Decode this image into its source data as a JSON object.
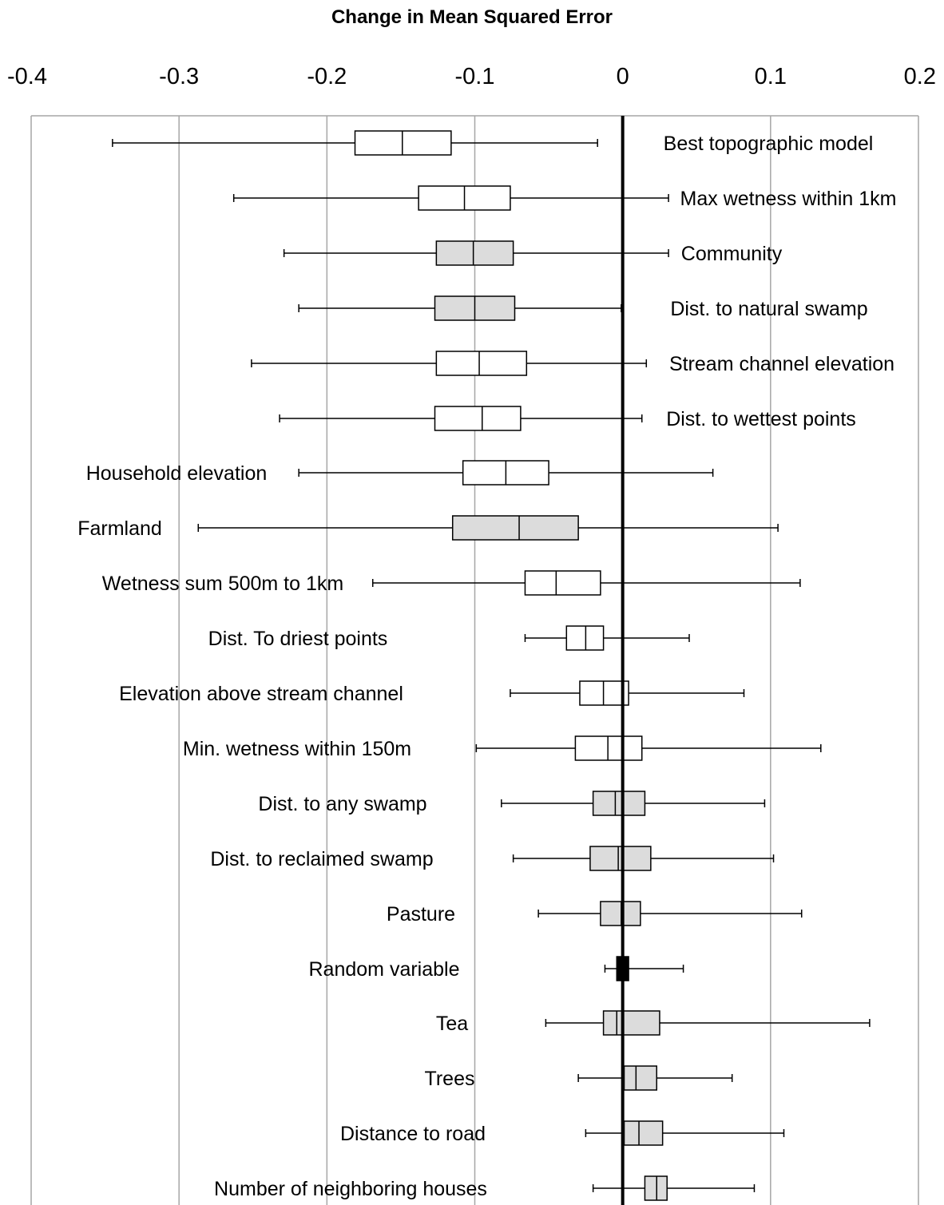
{
  "chart_data": {
    "type": "box",
    "title": "Change in Mean Squared Error",
    "xlabel": "",
    "ylabel": "",
    "xlim": [
      -0.4,
      0.2
    ],
    "xticks": [
      "-0.4",
      "-0.3",
      "-0.2",
      "-0.1",
      "0",
      "0.1",
      "0.2"
    ],
    "grid": true,
    "reference_line": 0,
    "fill_colors": {
      "white": "#ffffff",
      "gray": "#dcdcdc",
      "black": "#000000"
    },
    "series": [
      {
        "name": "Best topographic model",
        "min": -0.345,
        "q1": -0.181,
        "median": -0.149,
        "q3": -0.116,
        "max": -0.017,
        "fill": "white"
      },
      {
        "name": "Max wetness within 1km",
        "min": -0.263,
        "q1": -0.138,
        "median": -0.107,
        "q3": -0.076,
        "max": 0.031,
        "fill": "white"
      },
      {
        "name": "Community",
        "min": -0.229,
        "q1": -0.126,
        "median": -0.101,
        "q3": -0.074,
        "max": 0.031,
        "fill": "gray"
      },
      {
        "name": "Dist. to natural swamp",
        "min": -0.219,
        "q1": -0.127,
        "median": -0.1,
        "q3": -0.073,
        "max": -0.001,
        "fill": "gray"
      },
      {
        "name": "Stream channel elevation",
        "min": -0.251,
        "q1": -0.126,
        "median": -0.097,
        "q3": -0.065,
        "max": 0.016,
        "fill": "white"
      },
      {
        "name": "Dist. to wettest points",
        "min": -0.232,
        "q1": -0.127,
        "median": -0.095,
        "q3": -0.069,
        "max": 0.013,
        "fill": "white"
      },
      {
        "name": "Household elevation",
        "min": -0.219,
        "q1": -0.108,
        "median": -0.079,
        "q3": -0.05,
        "max": 0.061,
        "fill": "white"
      },
      {
        "name": "Farmland",
        "min": -0.287,
        "q1": -0.115,
        "median": -0.07,
        "q3": -0.03,
        "max": 0.105,
        "fill": "gray"
      },
      {
        "name": "Wetness sum 500m to 1km",
        "min": -0.169,
        "q1": -0.066,
        "median": -0.045,
        "q3": -0.015,
        "max": 0.12,
        "fill": "white"
      },
      {
        "name": "Dist. To driest points",
        "min": -0.066,
        "q1": -0.038,
        "median": -0.025,
        "q3": -0.013,
        "max": 0.045,
        "fill": "white"
      },
      {
        "name": "Elevation above stream channel",
        "min": -0.076,
        "q1": -0.029,
        "median": -0.013,
        "q3": 0.004,
        "max": 0.082,
        "fill": "white"
      },
      {
        "name": "Min. wetness within 150m",
        "min": -0.099,
        "q1": -0.032,
        "median": -0.01,
        "q3": 0.013,
        "max": 0.134,
        "fill": "white"
      },
      {
        "name": "Dist. to any swamp",
        "min": -0.082,
        "q1": -0.02,
        "median": -0.005,
        "q3": 0.015,
        "max": 0.096,
        "fill": "gray"
      },
      {
        "name": "Dist. to reclaimed swamp",
        "min": -0.074,
        "q1": -0.022,
        "median": -0.003,
        "q3": 0.019,
        "max": 0.102,
        "fill": "gray"
      },
      {
        "name": "Pasture",
        "min": -0.057,
        "q1": -0.015,
        "median": -0.001,
        "q3": 0.012,
        "max": 0.121,
        "fill": "gray"
      },
      {
        "name": "Random variable",
        "min": -0.012,
        "q1": -0.004,
        "median": 0.0,
        "q3": 0.004,
        "max": 0.041,
        "fill": "black"
      },
      {
        "name": "Tea",
        "min": -0.052,
        "q1": -0.013,
        "median": -0.004,
        "q3": 0.025,
        "max": 0.167,
        "fill": "gray"
      },
      {
        "name": "Trees",
        "min": -0.03,
        "q1": 0.001,
        "median": 0.009,
        "q3": 0.023,
        "max": 0.074,
        "fill": "gray"
      },
      {
        "name": "Distance to road",
        "min": -0.025,
        "q1": 0.001,
        "median": 0.011,
        "q3": 0.027,
        "max": 0.109,
        "fill": "gray"
      },
      {
        "name": "Number of neighboring houses",
        "min": -0.02,
        "q1": 0.015,
        "median": 0.023,
        "q3": 0.03,
        "max": 0.089,
        "fill": "gray"
      }
    ]
  }
}
